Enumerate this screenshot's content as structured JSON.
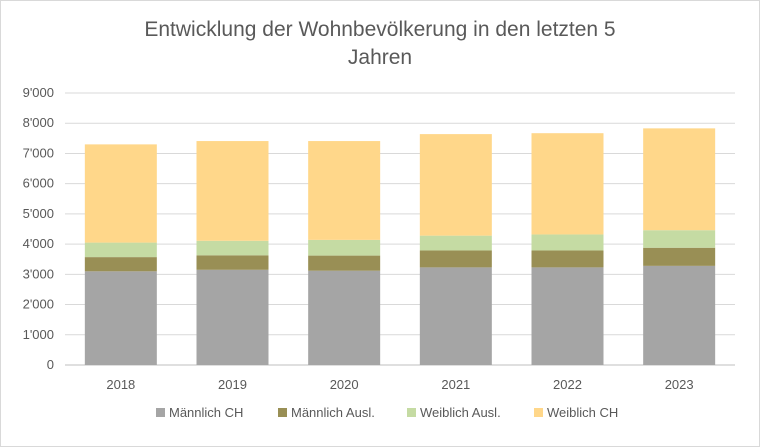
{
  "chart_data": {
    "type": "bar",
    "stacked": true,
    "title_lines": [
      "Entwicklung der Wohnbevölkerung in den letzten 5",
      "Jahren"
    ],
    "categories": [
      "2018",
      "2019",
      "2020",
      "2021",
      "2022",
      "2023"
    ],
    "series": [
      {
        "name": "Männlich CH",
        "color": "#a5a5a5",
        "values": [
          3100,
          3150,
          3120,
          3230,
          3230,
          3280
        ]
      },
      {
        "name": "Männlich Ausl.",
        "color": "#998f55",
        "values": [
          470,
          480,
          500,
          560,
          560,
          600
        ]
      },
      {
        "name": "Weiblich Ausl.",
        "color": "#c5dba3",
        "values": [
          480,
          480,
          520,
          490,
          530,
          580
        ]
      },
      {
        "name": "Weiblich CH",
        "color": "#ffd78a",
        "values": [
          3250,
          3300,
          3270,
          3360,
          3350,
          3370
        ]
      }
    ],
    "ylim": [
      0,
      9000
    ],
    "yticks": [
      0,
      1000,
      2000,
      3000,
      4000,
      5000,
      6000,
      7000,
      8000,
      9000
    ],
    "ytick_labels": [
      "0",
      "1'000",
      "2'000",
      "3'000",
      "4'000",
      "5'000",
      "6'000",
      "7'000",
      "8'000",
      "9'000"
    ],
    "grid": true,
    "legend_position": "bottom"
  }
}
